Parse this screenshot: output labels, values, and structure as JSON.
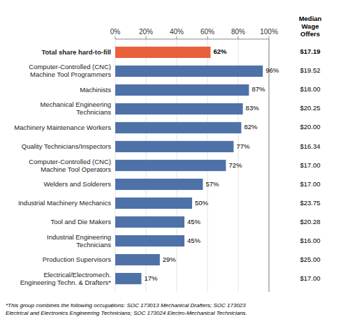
{
  "chart_data": {
    "type": "bar",
    "orientation": "horizontal",
    "categories": [
      "Electrical/Electromech.\nEngineering Techn. & Drafters*",
      "Production Supervisors",
      "Industrial Engineering\nTechnicians",
      "Tool and Die Makers",
      "Industrial Machinery Mechanics",
      "Welders and Solderers",
      "Computer-Controlled (CNC)\nMachine Tool Operators",
      "Quality Technicians/Inspectors",
      "Machinery Maintenance Workers",
      "Mechanical Engineering\nTechnicians",
      "Machinists",
      "Computer-Controlled (CNC)\nMachine Tool Programmers",
      "Total share hard-to-fill"
    ],
    "values": [
      17,
      29,
      45,
      45,
      50,
      57,
      72,
      77,
      82,
      83,
      87,
      96,
      62
    ],
    "value_labels": [
      "17%",
      "29%",
      "45%",
      "45%",
      "50%",
      "57%",
      "72%",
      "77%",
      "82%",
      "83%",
      "87%",
      "96%",
      "62%"
    ],
    "data_labels": true,
    "colors": [
      "#4e72a8",
      "#4e72a8",
      "#4e72a8",
      "#4e72a8",
      "#4e72a8",
      "#4e72a8",
      "#4e72a8",
      "#4e72a8",
      "#4e72a8",
      "#4e72a8",
      "#4e72a8",
      "#4e72a8",
      "#e8603c"
    ],
    "wage_header": "Median\nWage\nOffers",
    "wage_labels": [
      "$17.00",
      "$25.00",
      "$16.00",
      "$20.28",
      "$23.75",
      "$17.00",
      "$17.00",
      "$16.34",
      "$20.00",
      "$20.25",
      "$18.00",
      "$19.52",
      "$17.19"
    ],
    "footnote": "*This group combines the following occupations: SOC 173013 Mechanical Drafters; SOC 173023\nElectrical and Electronics Engineering Technicians; SOC 173024 Electro-Mechanical Technicians.",
    "xlim": [
      0,
      100
    ],
    "xticks": [
      {
        "value": 0,
        "label": "0%"
      },
      {
        "value": 20,
        "label": "20%"
      },
      {
        "value": 40,
        "label": "40%"
      },
      {
        "value": 60,
        "label": "60%"
      },
      {
        "value": 80,
        "label": "80%"
      },
      {
        "value": 100,
        "label": "100%"
      }
    ],
    "grid": true
  }
}
